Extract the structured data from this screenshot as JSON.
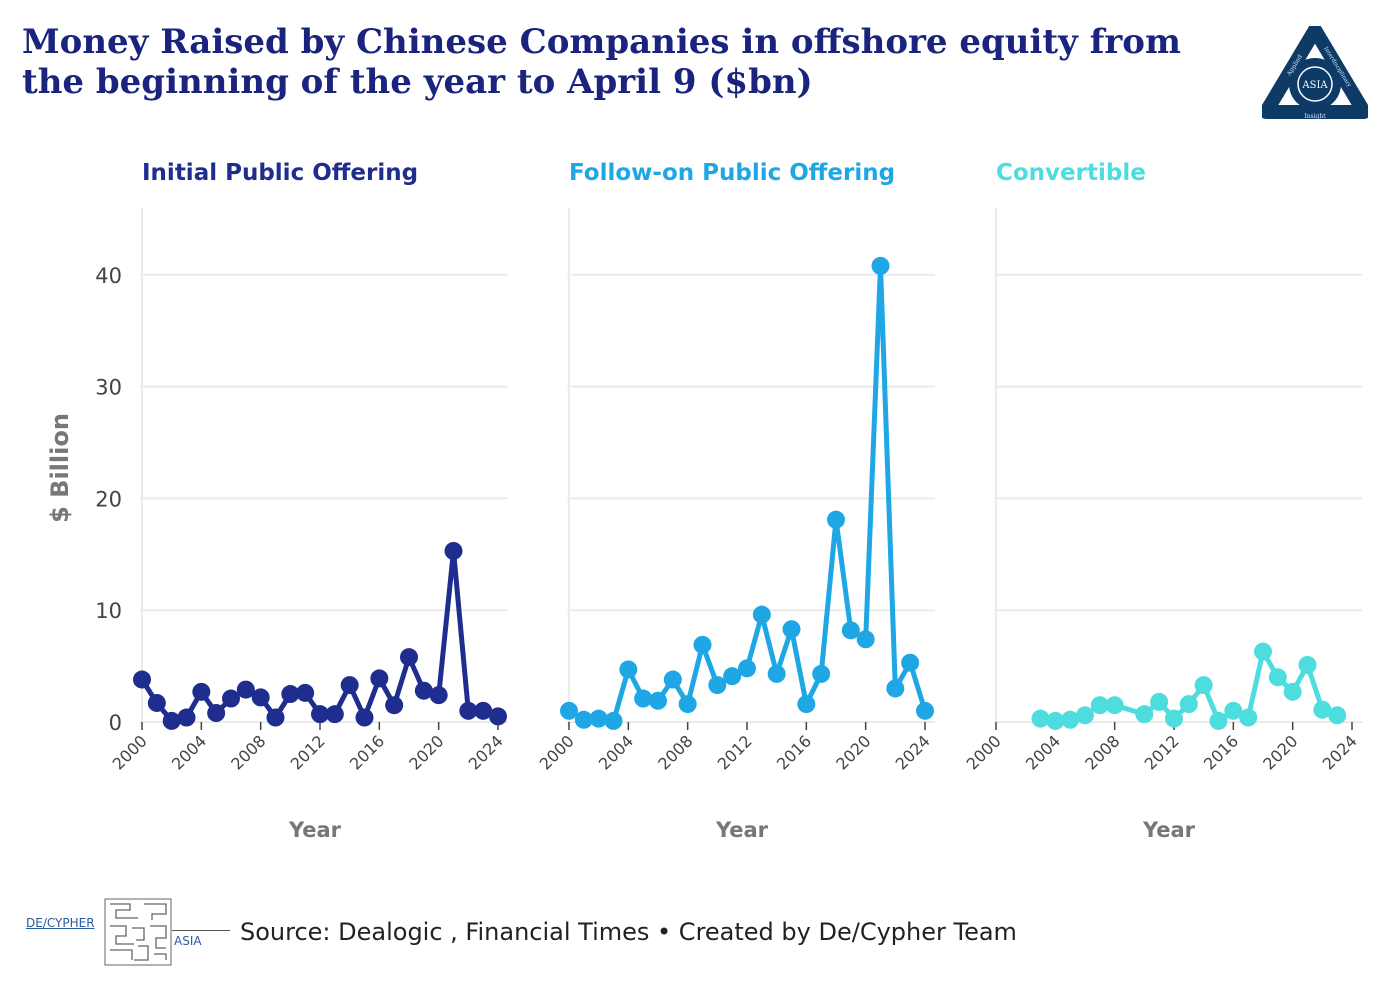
{
  "title": "Money Raised by Chinese Companies in offshore equity from the beginning of the year to April 9 ($bn)",
  "logo": {
    "ring_text_1": "Applied",
    "ring_text_2": "Interdisciplinary",
    "ring_text_3": "Insight",
    "center": "ASIA",
    "color": "#0d3b66"
  },
  "footer": {
    "source": "Source: Dealogic , Financial Times • Created by De/Cypher Team"
  },
  "brand": {
    "left": "DE/CYPHER",
    "right": "ASIA"
  },
  "chart_data": {
    "type": "line",
    "ylabel": "$ Billion",
    "xlabel": "Year",
    "ylim": [
      0,
      44
    ],
    "xlim": [
      2000,
      2024
    ],
    "yticks": [
      0,
      10,
      20,
      30,
      40
    ],
    "xticks": [
      2000,
      2004,
      2008,
      2012,
      2016,
      2020,
      2024
    ],
    "grid": true,
    "series": [
      {
        "name": "Initial Public Offering",
        "color": "#1f2d8f",
        "x": [
          2000,
          2001,
          2002,
          2003,
          2004,
          2005,
          2006,
          2007,
          2008,
          2009,
          2010,
          2011,
          2012,
          2013,
          2014,
          2015,
          2016,
          2017,
          2018,
          2019,
          2020,
          2021,
          2022,
          2023,
          2024
        ],
        "values": [
          3.8,
          1.7,
          0.1,
          0.4,
          2.7,
          0.8,
          2.1,
          2.9,
          2.2,
          0.4,
          2.5,
          2.6,
          0.7,
          0.7,
          3.3,
          0.4,
          3.9,
          1.5,
          5.8,
          2.8,
          2.4,
          15.3,
          1.0,
          1.0,
          0.5
        ]
      },
      {
        "name": "Follow-on Public Offering",
        "color": "#1ea7e4",
        "x": [
          2000,
          2001,
          2002,
          2003,
          2004,
          2005,
          2006,
          2007,
          2008,
          2009,
          2010,
          2011,
          2012,
          2013,
          2014,
          2015,
          2016,
          2017,
          2018,
          2019,
          2020,
          2021,
          2022,
          2023,
          2024
        ],
        "values": [
          1.0,
          0.2,
          0.3,
          0.1,
          4.7,
          2.1,
          1.9,
          3.8,
          1.6,
          6.9,
          3.3,
          4.1,
          4.8,
          9.6,
          4.3,
          8.3,
          1.6,
          4.3,
          18.1,
          8.2,
          7.4,
          40.8,
          3.0,
          5.3,
          1.0
        ]
      },
      {
        "name": "Convertible",
        "color": "#4dddde",
        "x": [
          2003,
          2004,
          2005,
          2006,
          2007,
          2008,
          2010,
          2011,
          2012,
          2013,
          2014,
          2015,
          2016,
          2017,
          2018,
          2019,
          2020,
          2021,
          2022,
          2023
        ],
        "values": [
          0.3,
          0.1,
          0.2,
          0.6,
          1.5,
          1.5,
          0.7,
          1.8,
          0.3,
          1.6,
          3.3,
          0.1,
          1.0,
          0.4,
          6.3,
          4.0,
          2.7,
          5.1,
          1.1,
          0.6
        ]
      }
    ]
  }
}
